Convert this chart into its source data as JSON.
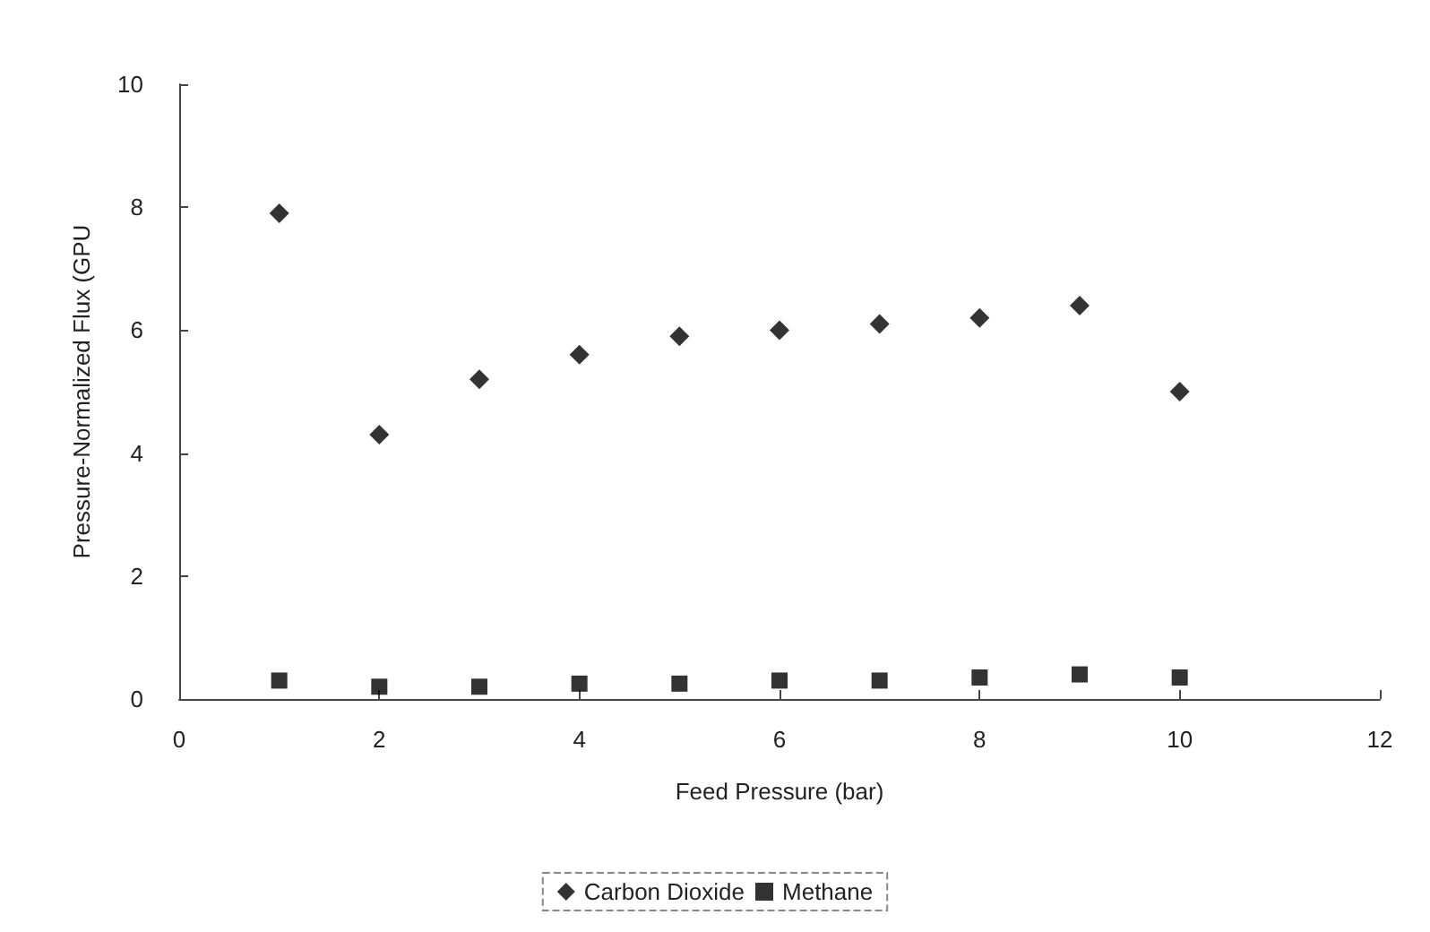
{
  "chart_data": {
    "type": "scatter",
    "xlabel": "Feed Pressure (bar)",
    "ylabel": "Pressure-Normalized Flux (GPU",
    "x": [
      1,
      2,
      3,
      4,
      5,
      6,
      7,
      8,
      9,
      10
    ],
    "series": [
      {
        "name": "Carbon Dioxide",
        "color": "#000000",
        "marker": "diamond",
        "values": [
          7.9,
          4.3,
          5.2,
          5.6,
          5.9,
          6.0,
          6.1,
          6.2,
          6.4,
          5.0
        ]
      },
      {
        "name": "Methane",
        "color": "#000000",
        "marker": "square",
        "values": [
          0.3,
          0.2,
          0.2,
          0.25,
          0.25,
          0.3,
          0.3,
          0.35,
          0.4,
          0.35
        ]
      }
    ],
    "xlim": [
      0,
      12
    ],
    "xticks": [
      0,
      2,
      4,
      6,
      8,
      10,
      12
    ],
    "ylim": [
      0,
      10
    ],
    "yticks": [
      0,
      2,
      4,
      6,
      8,
      10
    ],
    "grid": false,
    "legend": "bottom"
  }
}
